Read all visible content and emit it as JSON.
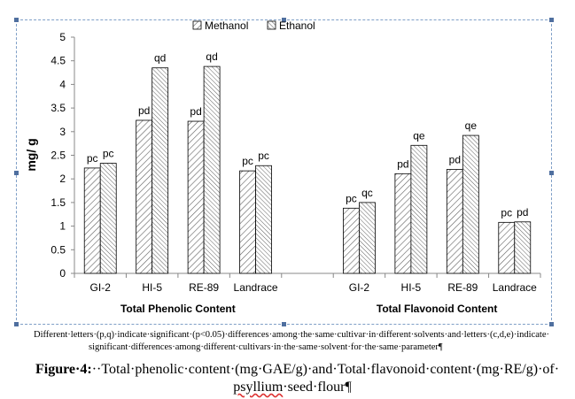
{
  "chart_data": {
    "type": "bar",
    "ylabel": "mg/ g",
    "ylim": [
      0,
      5
    ],
    "yticks": [
      "0",
      "0.5",
      "1",
      "1.5",
      "2",
      "2.5",
      "3",
      "3.5",
      "4",
      "4.5",
      "5"
    ],
    "grid": false,
    "legend_position": "top-center",
    "legend": [
      {
        "name": "Methanol",
        "pattern": "diagonal-hatch"
      },
      {
        "name": "Ethanol",
        "pattern": "dense-diagonal-hatch"
      }
    ],
    "groups": [
      {
        "label": "Total Phenolic Content",
        "categories": [
          "GI-2",
          "HI-5",
          "RE-89",
          "Landrace"
        ],
        "series": [
          {
            "name": "Methanol",
            "values": [
              2.23,
              3.24,
              3.22,
              2.17
            ],
            "labels": [
              "pc",
              "pd",
              "pd",
              "pc"
            ]
          },
          {
            "name": "Ethanol",
            "values": [
              2.33,
              4.35,
              4.38,
              2.28
            ],
            "labels": [
              "pc",
              "qd",
              "qd",
              "pc"
            ]
          }
        ]
      },
      {
        "label": "Total Flavonoid Content",
        "categories": [
          "GI-2",
          "HI-5",
          "RE-89",
          "Landrace"
        ],
        "series": [
          {
            "name": "Methanol",
            "values": [
              1.38,
              2.11,
              2.2,
              1.08
            ],
            "labels": [
              "pc",
              "pd",
              "pd",
              "pc"
            ]
          },
          {
            "name": "Ethanol",
            "values": [
              1.5,
              2.71,
              2.92,
              1.09
            ],
            "labels": [
              "qc",
              "qe",
              "qe",
              "pd"
            ]
          }
        ]
      }
    ]
  },
  "footnote": {
    "line1": "Different·letters·(p,q)·indicate·significant·(p<0.05)·differences·among·the·same·cultivar·in·different·solvents·and·letters·(c,d,e)·indicate·",
    "line2": "significant·differences·among·different·cultivars·in·the·same·solvent·for·the·same·parameter¶"
  },
  "caption": {
    "label": "Figure·4:",
    "text": "··Total·phenolic·content·(mg·GAE/g)·and·Total·flavonoid·content·(mg·RE/g)·of·",
    "line2_word": "psyllium",
    "line2_rest": "·seed·flour¶"
  },
  "colors": {
    "bar_fill": "#ffffff",
    "bar_stroke": "#000000",
    "hatch": "#555555",
    "axis": "#888888",
    "frame": "#7f9fc7"
  }
}
